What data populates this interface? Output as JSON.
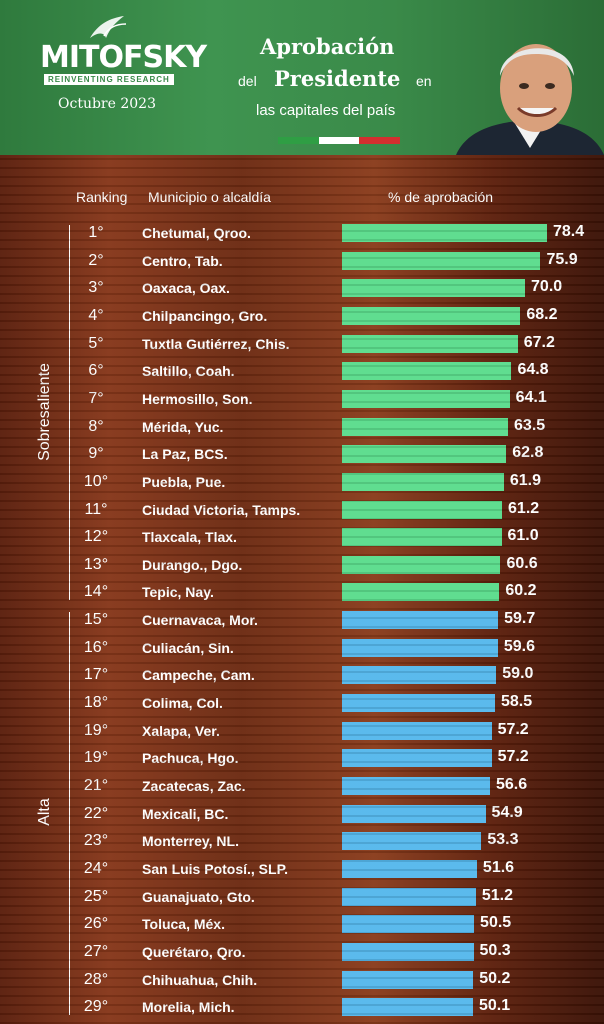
{
  "header": {
    "brand": "MITOFSKY",
    "tagline": "REINVENTING RESEARCH",
    "month": "Octubre 2023",
    "title_line1": "Aprobación",
    "title_del": "del",
    "title_line2": "Presidente",
    "title_en": "en",
    "title_line3": "las capitales del país",
    "flag_colors": [
      "#2f9e44",
      "#ffffff",
      "#d32f2f"
    ]
  },
  "chart_data": {
    "type": "bar",
    "orientation": "horizontal",
    "column_headers": {
      "ranking": "Ranking",
      "municipio": "Municipio o alcaldía",
      "aprobacion": "% de aprobación"
    },
    "groups": [
      {
        "label": "Sobresaliente",
        "color": "#5bdc8c",
        "from": 0,
        "to": 13
      },
      {
        "label": "Alta",
        "color": "#56b8ec",
        "from": 14,
        "to": 28
      }
    ],
    "xlim": [
      0,
      78.4
    ],
    "rows": [
      {
        "rank": "1°",
        "municipio": "Chetumal, Qroo.",
        "value": 78.4,
        "value_label": "78.4"
      },
      {
        "rank": "2°",
        "municipio": "Centro, Tab.",
        "value": 75.9,
        "value_label": "75.9"
      },
      {
        "rank": "3°",
        "municipio": "Oaxaca, Oax.",
        "value": 70.0,
        "value_label": "70.0"
      },
      {
        "rank": "4°",
        "municipio": "Chilpancingo, Gro.",
        "value": 68.2,
        "value_label": "68.2"
      },
      {
        "rank": "5°",
        "municipio": "Tuxtla Gutiérrez, Chis.",
        "value": 67.2,
        "value_label": "67.2"
      },
      {
        "rank": "6°",
        "municipio": "Saltillo, Coah.",
        "value": 64.8,
        "value_label": "64.8"
      },
      {
        "rank": "7°",
        "municipio": "Hermosillo, Son.",
        "value": 64.1,
        "value_label": "64.1"
      },
      {
        "rank": "8°",
        "municipio": "Mérida, Yuc.",
        "value": 63.5,
        "value_label": "63.5"
      },
      {
        "rank": "9°",
        "municipio": "La Paz, BCS.",
        "value": 62.8,
        "value_label": "62.8"
      },
      {
        "rank": "10°",
        "municipio": "Puebla, Pue.",
        "value": 61.9,
        "value_label": "61.9"
      },
      {
        "rank": "11°",
        "municipio": "Ciudad Victoria, Tamps.",
        "value": 61.2,
        "value_label": "61.2"
      },
      {
        "rank": "12°",
        "municipio": "Tlaxcala, Tlax.",
        "value": 61.0,
        "value_label": "61.0"
      },
      {
        "rank": "13°",
        "municipio": "Durango., Dgo.",
        "value": 60.6,
        "value_label": "60.6"
      },
      {
        "rank": "14°",
        "municipio": "Tepic, Nay.",
        "value": 60.2,
        "value_label": "60.2"
      },
      {
        "rank": "15°",
        "municipio": "Cuernavaca, Mor.",
        "value": 59.7,
        "value_label": "59.7"
      },
      {
        "rank": "16°",
        "municipio": "Culiacán, Sin.",
        "value": 59.6,
        "value_label": "59.6"
      },
      {
        "rank": "17°",
        "municipio": "Campeche, Cam.",
        "value": 59.0,
        "value_label": "59.0"
      },
      {
        "rank": "18°",
        "municipio": "Colima, Col.",
        "value": 58.5,
        "value_label": "58.5"
      },
      {
        "rank": "19°",
        "municipio": "Xalapa, Ver.",
        "value": 57.2,
        "value_label": "57.2"
      },
      {
        "rank": "19°",
        "municipio": "Pachuca, Hgo.",
        "value": 57.2,
        "value_label": "57.2"
      },
      {
        "rank": "21°",
        "municipio": "Zacatecas, Zac.",
        "value": 56.6,
        "value_label": "56.6"
      },
      {
        "rank": "22°",
        "municipio": "Mexicali, BC.",
        "value": 54.9,
        "value_label": "54.9"
      },
      {
        "rank": "23°",
        "municipio": "Monterrey, NL.",
        "value": 53.3,
        "value_label": "53.3"
      },
      {
        "rank": "24°",
        "municipio": "San Luis Potosí., SLP.",
        "value": 51.6,
        "value_label": "51.6"
      },
      {
        "rank": "25°",
        "municipio": "Guanajuato, Gto.",
        "value": 51.2,
        "value_label": "51.2"
      },
      {
        "rank": "26°",
        "municipio": "Toluca, Méx.",
        "value": 50.5,
        "value_label": "50.5"
      },
      {
        "rank": "27°",
        "municipio": "Querétaro, Qro.",
        "value": 50.3,
        "value_label": "50.3"
      },
      {
        "rank": "28°",
        "municipio": "Chihuahua, Chih.",
        "value": 50.2,
        "value_label": "50.2"
      },
      {
        "rank": "29°",
        "municipio": "Morelia, Mich.",
        "value": 50.1,
        "value_label": "50.1"
      }
    ]
  }
}
